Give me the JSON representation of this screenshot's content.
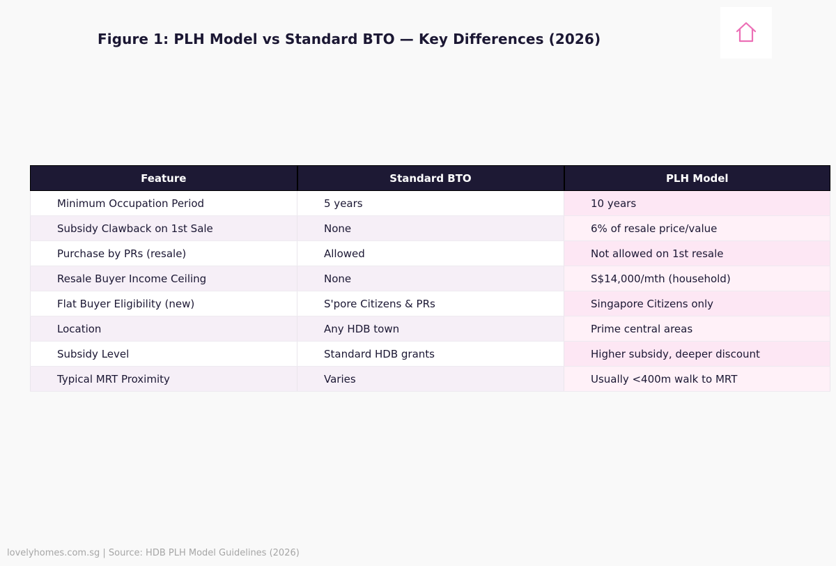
{
  "title": "Figure 1: PLH Model vs Standard BTO — Key Differences (2026)",
  "logo": {
    "icon": "house-icon",
    "color": "#ec6fb6"
  },
  "chart_data": {
    "type": "table",
    "columns": [
      "Feature",
      "Standard BTO",
      "PLH Model"
    ],
    "rows": [
      [
        "Minimum Occupation Period",
        "5 years",
        "10 years"
      ],
      [
        "Subsidy Clawback on 1st Sale",
        "None",
        "6% of resale price/value"
      ],
      [
        "Purchase by PRs (resale)",
        "Allowed",
        "Not allowed on 1st resale"
      ],
      [
        "Resale Buyer Income Ceiling",
        "None",
        "S$14,000/mth (household)"
      ],
      [
        "Flat Buyer Eligibility (new)",
        "S'pore Citizens & PRs",
        "Singapore Citizens only"
      ],
      [
        "Location",
        "Any HDB town",
        "Prime central areas"
      ],
      [
        "Subsidy Level",
        "Standard HDB grants",
        "Higher subsidy, deeper discount"
      ],
      [
        "Typical MRT Proximity",
        "Varies",
        "Usually <400m walk to MRT"
      ]
    ]
  },
  "colors": {
    "header_bg": "#1d1934",
    "row_alt": "#f6eff7",
    "plh_highlight": "#fde7f4"
  },
  "footer": "lovelyhomes.com.sg  |  Source: HDB PLH Model Guidelines (2026)"
}
